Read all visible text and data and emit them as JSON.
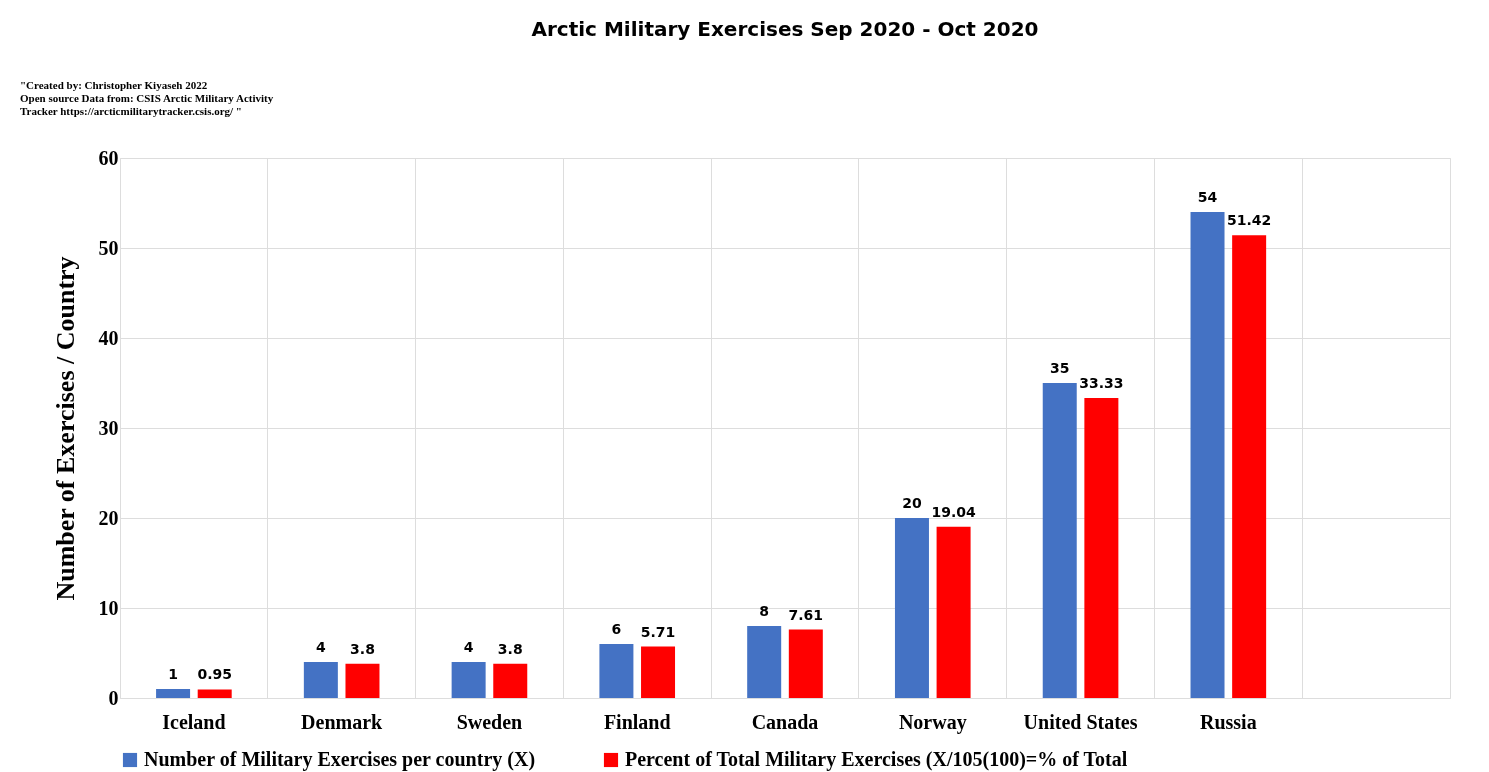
{
  "chart_data": {
    "type": "bar",
    "title": "Arctic Military Exercises Sep 2020 - Oct 2020",
    "ylabel": "Number of Exercises / Country",
    "categories": [
      "Iceland",
      "Denmark",
      "Sweden",
      "Finland",
      "Canada",
      "Norway",
      "United States",
      "Russia",
      null
    ],
    "series": [
      {
        "name": "Number of  Military Exercises per country (X)",
        "color": "#4472c4",
        "values": [
          1,
          4,
          4,
          6,
          8,
          20,
          35,
          54,
          null
        ]
      },
      {
        "name": "Percent of Total Military Exercises (X/105(100)=% of Total",
        "color": "#ff0000",
        "values": [
          0.95,
          3.8,
          3.8,
          5.71,
          7.61,
          19.04,
          33.33,
          51.42,
          null
        ]
      }
    ],
    "ylim": [
      0,
      60
    ],
    "yticks": [
      0,
      10,
      20,
      30,
      40,
      50,
      60
    ],
    "grid": true,
    "legend": "bottom",
    "data_labels": true,
    "annotations": [
      "\"Created by: Christopher Kiyaseh 2022\nOpen source Data from: CSIS Arctic Military Activity\nTracker https://arcticmilitarytracker.csis.org/ \""
    ]
  }
}
